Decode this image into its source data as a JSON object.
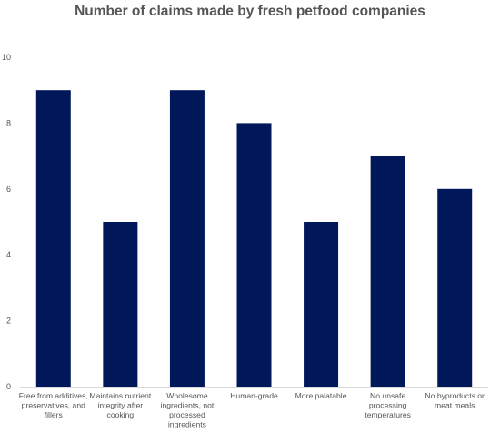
{
  "chart_data": {
    "type": "bar",
    "title": "Number of claims made by fresh petfood companies",
    "categories": [
      "Free from additives, preservatives, and fillers",
      "Maintains nutrient integrity after cooking",
      "Wholesome ingredients, not processed ingredients",
      "Human-grade",
      "More palatable",
      "No unsafe processing temperatures",
      "No byproducts or meat meals"
    ],
    "category_label_lines": [
      [
        "Free from additives,",
        "preservatives, and",
        "fillers"
      ],
      [
        "Maintains nutrient",
        "integrity after",
        "cooking"
      ],
      [
        "Wholesome",
        "ingredients, not",
        "processed",
        "ingredients"
      ],
      [
        "Human-grade"
      ],
      [
        "More palatable"
      ],
      [
        "No unsafe",
        "processing",
        "temperatures"
      ],
      [
        "No byproducts or",
        "meat meals"
      ]
    ],
    "values": [
      9,
      5,
      9,
      8,
      5,
      7,
      6
    ],
    "ylim": [
      0,
      10
    ],
    "yticks": [
      0,
      2,
      4,
      6,
      8,
      10
    ],
    "xlabel": "",
    "ylabel": "",
    "grid": false,
    "bar_color": "#00175a"
  }
}
